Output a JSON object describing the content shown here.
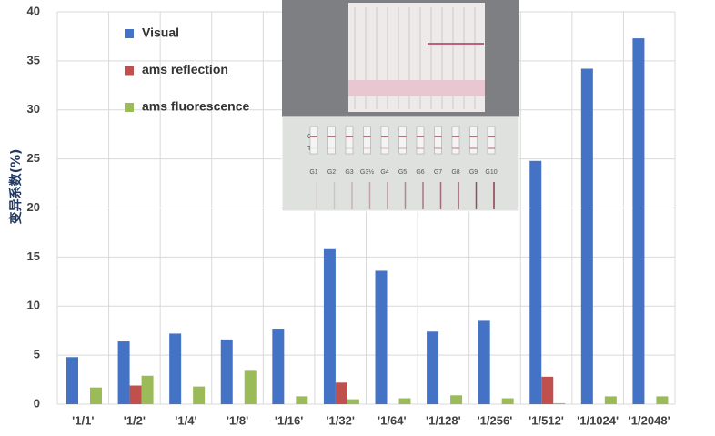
{
  "chart_data": {
    "type": "bar",
    "y_label": "变异系数(%)",
    "categories": [
      "'1/1'",
      "'1/2'",
      "'1/4'",
      "'1/8'",
      "'1/16'",
      "'1/32'",
      "'1/64'",
      "'1/128'",
      "'1/256'",
      "'1/512'",
      "'1/1024'",
      "'1/2048'"
    ],
    "series": [
      {
        "name": "Visual",
        "color": "#4472c4",
        "values": [
          4.8,
          6.4,
          7.2,
          6.6,
          7.7,
          15.8,
          13.6,
          7.4,
          8.5,
          24.8,
          34.2,
          37.3
        ]
      },
      {
        "name": "ams reflection",
        "color": "#c0504d",
        "values": [
          null,
          1.9,
          null,
          null,
          null,
          2.2,
          null,
          null,
          null,
          2.8,
          null,
          null
        ]
      },
      {
        "name": "ams fluorescence",
        "color": "#9bbb59",
        "values": [
          1.7,
          2.9,
          1.8,
          3.4,
          0.8,
          0.5,
          0.6,
          0.9,
          0.6,
          0.1,
          0.8,
          0.8
        ]
      }
    ],
    "ylim": [
      0,
      40
    ],
    "yticks": [
      0,
      5,
      10,
      15,
      20,
      25,
      30,
      35,
      40
    ],
    "grid": true,
    "inset_labels": [
      "C",
      "T",
      "G1",
      "G2",
      "G3",
      "G3½",
      "G4",
      "G5",
      "G6",
      "G7",
      "G8",
      "G9",
      "G10"
    ]
  }
}
